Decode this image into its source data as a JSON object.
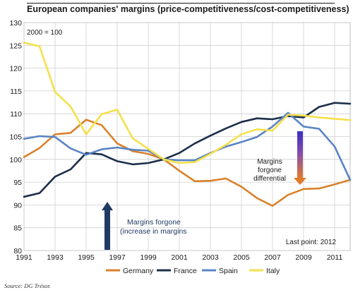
{
  "chart_data": {
    "type": "line",
    "title": "European companies' margins (price-competitiveness/cost-competitiveness)",
    "subtitle": "2000 = 100",
    "ylim": [
      80,
      130
    ],
    "yticks": [
      80,
      85,
      90,
      95,
      100,
      105,
      110,
      115,
      120,
      125,
      130
    ],
    "xlim": [
      1991,
      2012
    ],
    "xticks": [
      1991,
      1993,
      1995,
      1997,
      1999,
      2001,
      2003,
      2005,
      2007,
      2009,
      2011
    ],
    "grid": true,
    "legend_position": "bottom",
    "x": [
      1991,
      1992,
      1993,
      1994,
      1995,
      1996,
      1997,
      1998,
      1999,
      2000,
      2001,
      2002,
      2003,
      2004,
      2005,
      2006,
      2007,
      2008,
      2009,
      2010,
      2011,
      2012
    ],
    "series": [
      {
        "name": "Germany",
        "color": "#d9822b",
        "values": [
          100.5,
          102.5,
          105.5,
          105.8,
          108.7,
          107.5,
          103.5,
          101.8,
          101.2,
          100.0,
          97.5,
          95.2,
          95.3,
          95.8,
          94.0,
          91.5,
          89.8,
          92.2,
          93.5,
          93.6,
          94.5,
          95.5
        ]
      },
      {
        "name": "France",
        "color": "#1c2e4a",
        "values": [
          91.8,
          92.6,
          96.2,
          97.8,
          101.4,
          101.1,
          99.6,
          98.9,
          99.2,
          100.0,
          101.4,
          103.5,
          105.2,
          106.8,
          108.2,
          109.0,
          108.8,
          109.5,
          109.2,
          111.5,
          112.4,
          112.2
        ]
      },
      {
        "name": "Spain",
        "color": "#5a84c4",
        "values": [
          104.5,
          105.1,
          104.9,
          102.4,
          101.0,
          102.2,
          102.6,
          102.1,
          101.9,
          100.0,
          99.8,
          99.8,
          101.4,
          102.8,
          103.8,
          104.9,
          107.2,
          110.2,
          107.2,
          106.7,
          102.8,
          95.5
        ]
      },
      {
        "name": "Italy",
        "color": "#f5e04a",
        "values": [
          125.6,
          124.8,
          114.8,
          111.6,
          105.5,
          109.9,
          110.9,
          104.6,
          102.3,
          100.0,
          99.2,
          99.4,
          101.2,
          103.2,
          105.5,
          106.6,
          106.3,
          109.8,
          109.6,
          109.2,
          108.9,
          108.6
        ]
      }
    ],
    "annotations": [
      {
        "id": "forgone",
        "lines": [
          "Margins forgone",
          "(increase in margins"
        ],
        "color": "#1f3a63"
      },
      {
        "id": "differential",
        "lines": [
          "Margins",
          "forgone",
          "differential"
        ],
        "color": "#1a1a1a"
      },
      {
        "id": "lastpoint",
        "lines": [
          "Last point: 2012"
        ],
        "color": "#1a1a1a"
      }
    ]
  },
  "source": "Source: DG Trésor."
}
